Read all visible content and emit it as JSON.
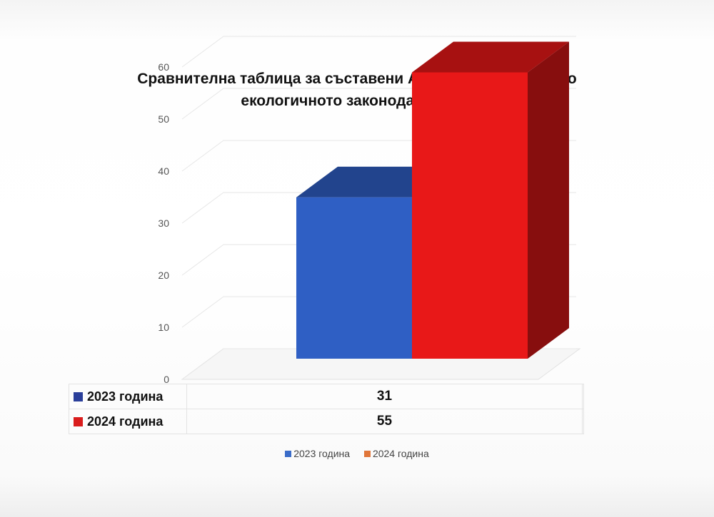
{
  "chart_data": {
    "type": "bar",
    "title": "Сравнителна таблица за съставени АУАН за нарушения по екологичното законодателство",
    "title_lines": [
      "Сравнителна таблица за съставени АУАН за нарушения по",
      "екологичното законодателство"
    ],
    "y_ticks": [
      "0",
      "10",
      "20",
      "30",
      "40",
      "50",
      "60"
    ],
    "ylim": [
      0,
      60
    ],
    "three_d": true,
    "series": [
      {
        "name": "2023 година",
        "values": [
          31
        ],
        "color": "#2f5fc4",
        "table_label": "31"
      },
      {
        "name": "2024 година",
        "values": [
          55
        ],
        "color": "#e81818",
        "table_label": "55"
      }
    ],
    "legend": {
      "position": "bottom",
      "items": [
        {
          "label": "2023 година",
          "color": "#3a6cc8"
        },
        {
          "label": "2024 година",
          "color": "#e0763a"
        }
      ]
    },
    "data_table": true
  }
}
